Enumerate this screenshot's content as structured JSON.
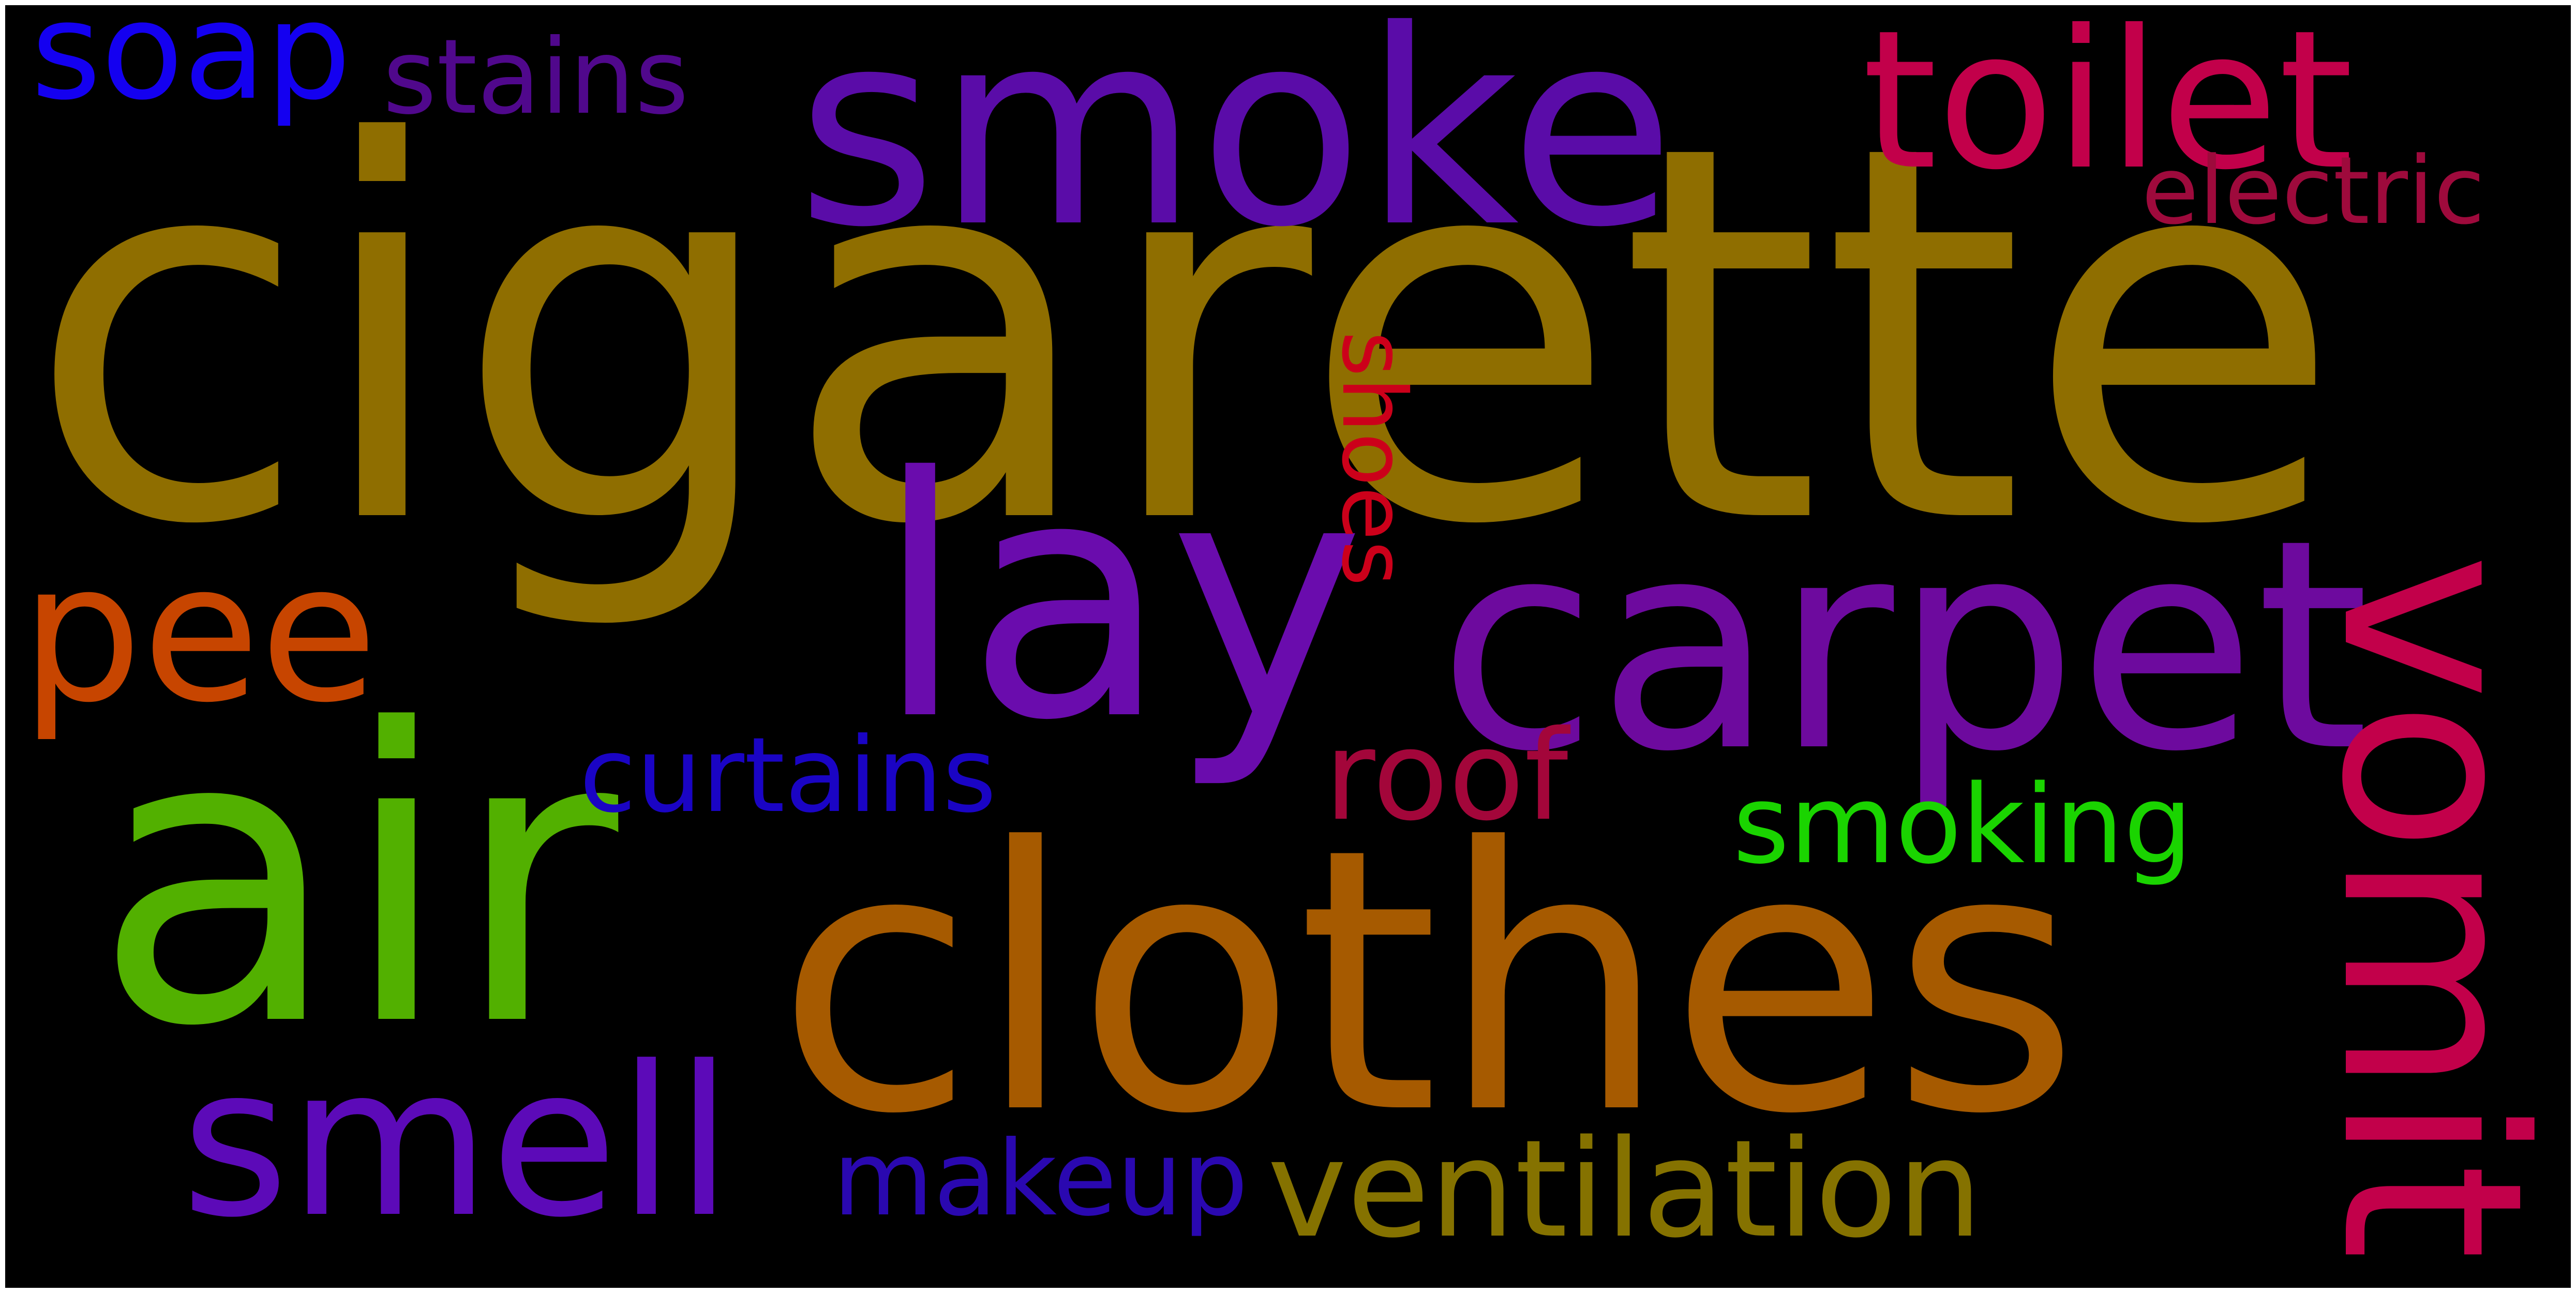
{
  "word_cloud": {
    "background_color": "#000000",
    "words": [
      {
        "id": "cigarette",
        "text": "cigarette",
        "color": "#8f6e00",
        "orientation": "horizontal"
      },
      {
        "id": "clothes",
        "text": "clothes",
        "color": "#a65a00",
        "orientation": "horizontal"
      },
      {
        "id": "air",
        "text": "air",
        "color": "#52b000",
        "orientation": "horizontal"
      },
      {
        "id": "smoke",
        "text": "smoke",
        "color": "#5a0ca8",
        "orientation": "horizontal"
      },
      {
        "id": "lay",
        "text": "lay",
        "color": "#6a0cad",
        "orientation": "horizontal"
      },
      {
        "id": "carpet",
        "text": "carpet",
        "color": "#6d0a9e",
        "orientation": "horizontal"
      },
      {
        "id": "vomit",
        "text": "vomit",
        "color": "#c2004a",
        "orientation": "vertical"
      },
      {
        "id": "toilet",
        "text": "toilet",
        "color": "#c2004a",
        "orientation": "horizontal"
      },
      {
        "id": "smell",
        "text": "smell",
        "color": "#5c0ab8",
        "orientation": "horizontal"
      },
      {
        "id": "ventilation",
        "text": "ventilation",
        "color": "#857200",
        "orientation": "horizontal"
      },
      {
        "id": "pee",
        "text": "pee",
        "color": "#c74500",
        "orientation": "horizontal"
      },
      {
        "id": "soap",
        "text": "soap",
        "color": "#1400f0",
        "orientation": "horizontal"
      },
      {
        "id": "stains",
        "text": "stains",
        "color": "#50088c",
        "orientation": "horizontal"
      },
      {
        "id": "electric",
        "text": "electric",
        "color": "#9e0a3c",
        "orientation": "horizontal"
      },
      {
        "id": "shoes",
        "text": "shoes",
        "color": "#cc001a",
        "orientation": "vertical"
      },
      {
        "id": "roof",
        "text": "roof",
        "color": "#a3063a",
        "orientation": "horizontal"
      },
      {
        "id": "curtains",
        "text": "curtains",
        "color": "#1a04c4",
        "orientation": "horizontal"
      },
      {
        "id": "smoking",
        "text": "smoking",
        "color": "#1ad400",
        "orientation": "horizontal"
      },
      {
        "id": "makeup",
        "text": "makeup",
        "color": "#2a08b0",
        "orientation": "horizontal"
      }
    ]
  }
}
